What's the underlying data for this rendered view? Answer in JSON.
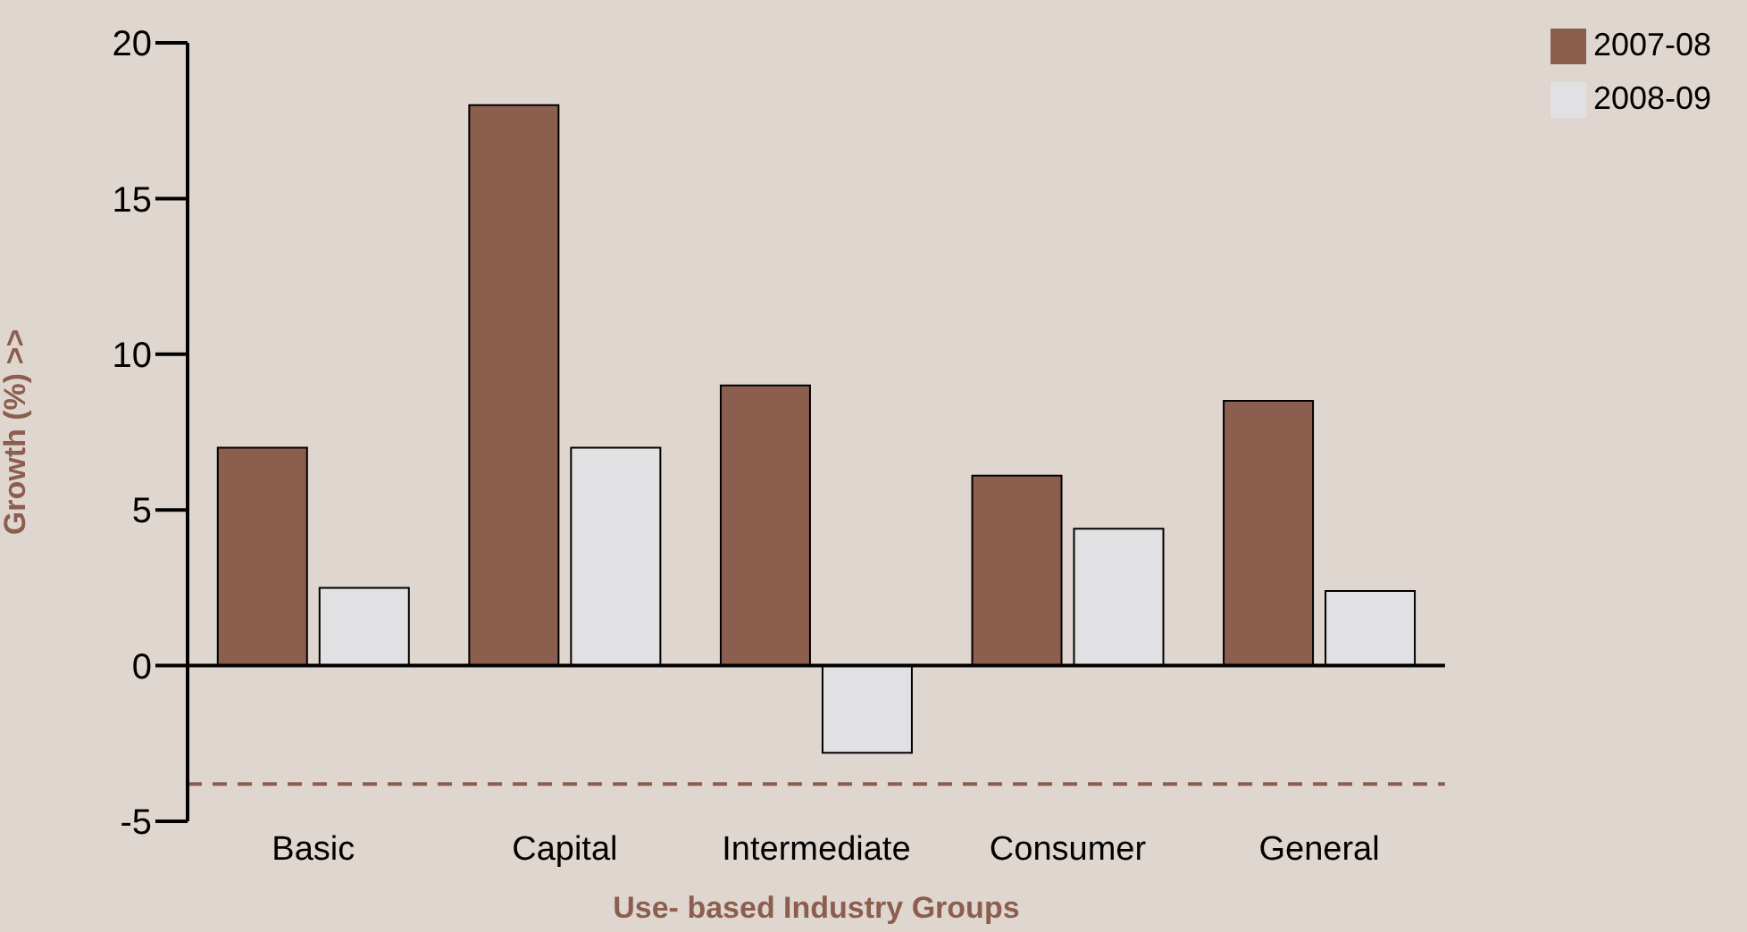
{
  "chart_data": {
    "type": "bar",
    "xlabel": "Use- based Industry Groups",
    "ylabel": "Growth  (%) >>",
    "categories": [
      "Basic",
      "Capital",
      "Intermediate",
      "Consumer",
      "General"
    ],
    "series": [
      {
        "name": "2007-08",
        "color": "#8b5e4e",
        "values": [
          7.0,
          18.0,
          9.0,
          6.1,
          8.5
        ]
      },
      {
        "name": "2008-09",
        "color": "#e1e1e3",
        "values": [
          2.5,
          7.0,
          -2.8,
          4.4,
          2.4
        ]
      }
    ],
    "ylim": [
      -5,
      20
    ],
    "yticks": [
      -5,
      0,
      5,
      10,
      15,
      20
    ],
    "legend": "top right",
    "ref_lines": [
      {
        "axis": "y",
        "value": -3.8,
        "label": null,
        "color": "#8b5e4e",
        "line_style": "dashed"
      }
    ]
  }
}
